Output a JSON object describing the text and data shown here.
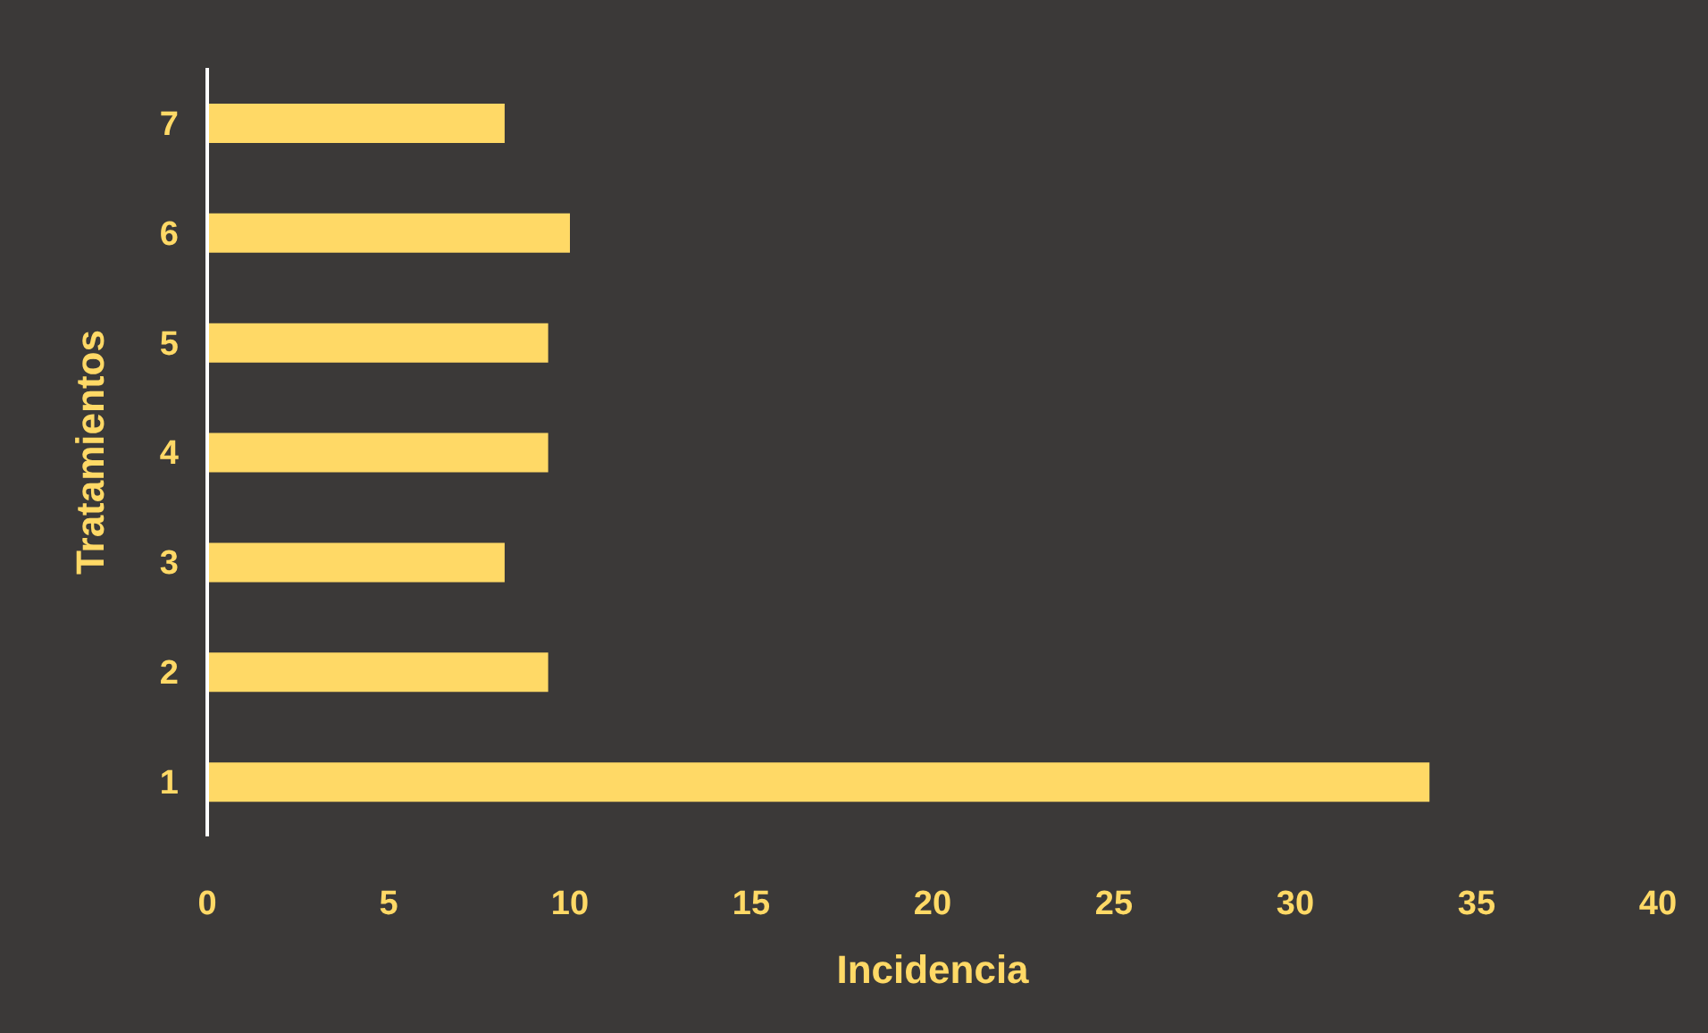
{
  "chart_data": {
    "type": "bar",
    "orientation": "horizontal",
    "xlabel": "Incidencia",
    "ylabel": "Tratamientos",
    "categories": [
      "7",
      "6",
      "5",
      "4",
      "3",
      "2",
      "1"
    ],
    "values": [
      8.2,
      10,
      9.4,
      9.4,
      8.2,
      9.4,
      33.7
    ],
    "color": "#ffd966",
    "xlim": [
      0,
      40
    ],
    "xticks": [
      0,
      5,
      10,
      15,
      20,
      25,
      30,
      35,
      40
    ],
    "grid": false,
    "legend": false
  }
}
